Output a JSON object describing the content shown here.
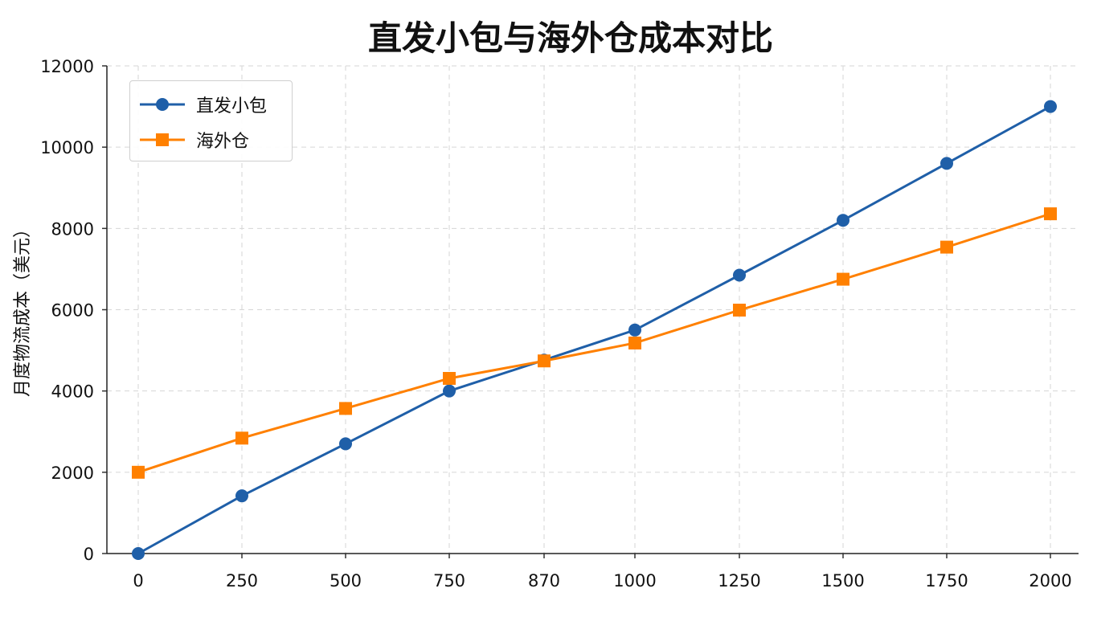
{
  "chart_data": {
    "type": "line",
    "title": "直发小包与海外仓成本对比",
    "xlabel": "",
    "ylabel": "月度物流成本（美元）",
    "categories": [
      "0",
      "250",
      "500",
      "750",
      "870",
      "1000",
      "1250",
      "1500",
      "1750",
      "2000"
    ],
    "x": [
      0,
      250,
      500,
      750,
      870,
      1000,
      1250,
      1500,
      1750,
      2000
    ],
    "ylim": [
      0,
      12000
    ],
    "yticks": [
      "0",
      "2000",
      "4000",
      "6000",
      "8000",
      "10000",
      "12000"
    ],
    "grid": true,
    "legend_position": "top-left",
    "series": [
      {
        "name": "直发小包",
        "color": "#1f5fa8",
        "marker": "circle",
        "values": [
          0,
          1420,
          2700,
          4000,
          4760,
          5500,
          6850,
          8200,
          9600,
          11000
        ]
      },
      {
        "name": "海外仓",
        "color": "#ff8000",
        "marker": "square",
        "values": [
          2000,
          2840,
          3570,
          4310,
          4740,
          5180,
          5990,
          6750,
          7540,
          8360
        ]
      }
    ]
  }
}
